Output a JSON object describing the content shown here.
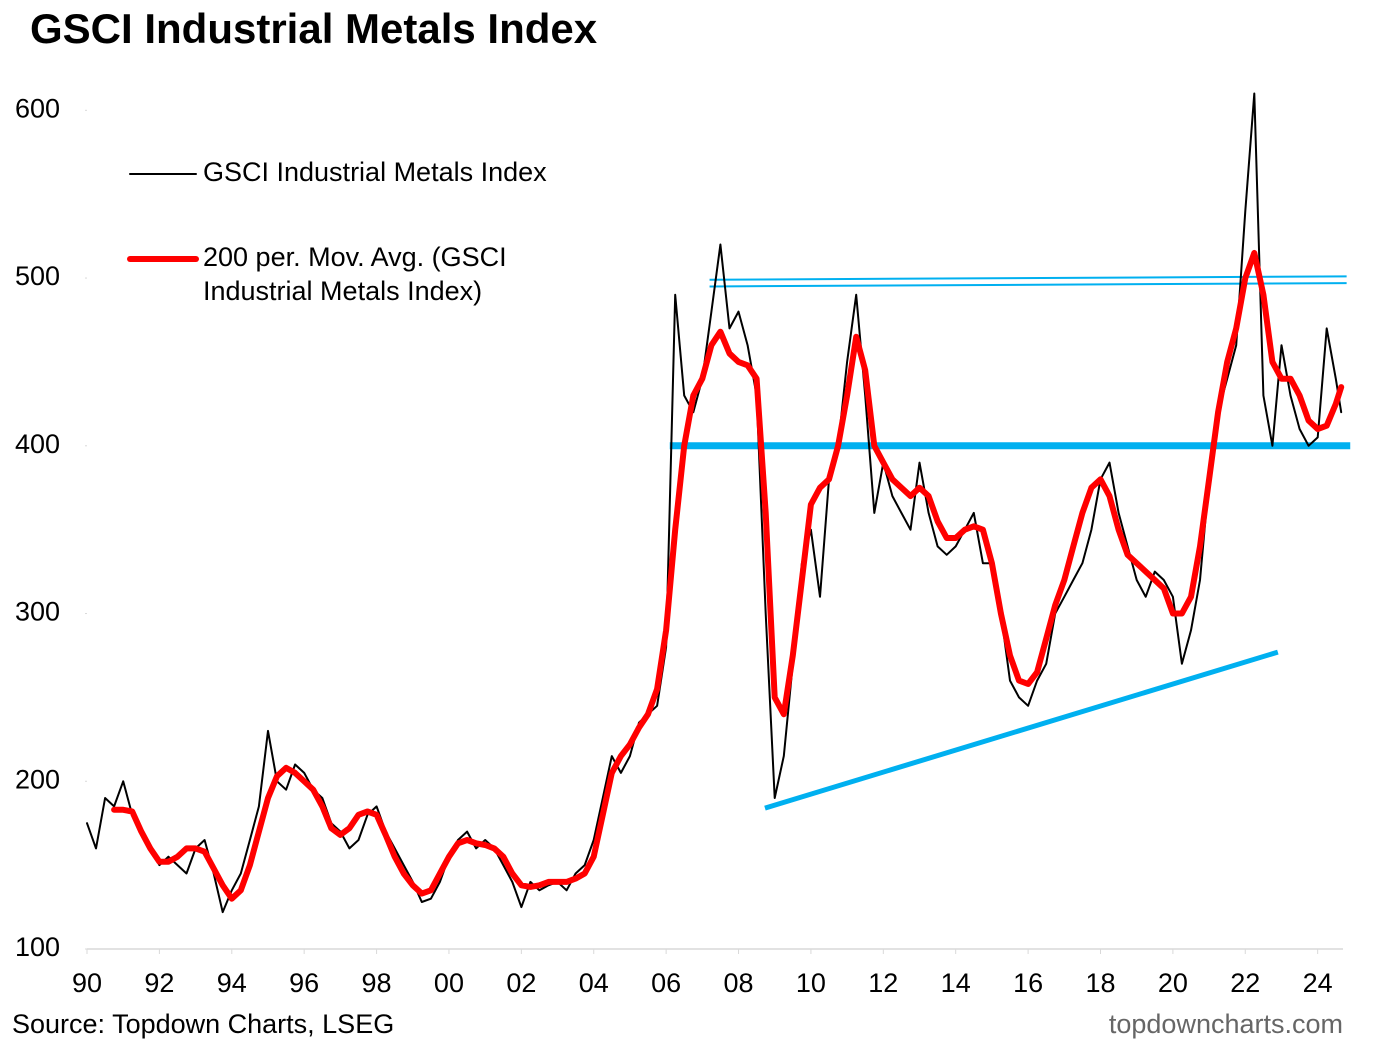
{
  "chart_data": {
    "type": "line",
    "title": "GSCI Industrial Metals Index",
    "source": "Source: Topdown Charts, LSEG",
    "credit": "topdowncharts.com",
    "x": [
      1990,
      1990.25,
      1990.5,
      1990.75,
      1991,
      1991.25,
      1991.5,
      1991.75,
      1992,
      1992.25,
      1992.5,
      1992.75,
      1993,
      1993.25,
      1993.5,
      1993.75,
      1994,
      1994.25,
      1994.5,
      1994.75,
      1995,
      1995.25,
      1995.5,
      1995.75,
      1996,
      1996.25,
      1996.5,
      1996.75,
      1997,
      1997.25,
      1997.5,
      1997.75,
      1998,
      1998.25,
      1998.5,
      1998.75,
      1999,
      1999.25,
      1999.5,
      1999.75,
      2000,
      2000.25,
      2000.5,
      2000.75,
      2001,
      2001.25,
      2001.5,
      2001.75,
      2002,
      2002.25,
      2002.5,
      2002.75,
      2003,
      2003.25,
      2003.5,
      2003.75,
      2004,
      2004.25,
      2004.5,
      2004.75,
      2005,
      2005.25,
      2005.5,
      2005.75,
      2006,
      2006.25,
      2006.5,
      2006.75,
      2007,
      2007.25,
      2007.5,
      2007.75,
      2008,
      2008.25,
      2008.5,
      2008.75,
      2009,
      2009.25,
      2009.5,
      2009.75,
      2010,
      2010.25,
      2010.5,
      2010.75,
      2011,
      2011.25,
      2011.5,
      2011.75,
      2012,
      2012.25,
      2012.5,
      2012.75,
      2013,
      2013.25,
      2013.5,
      2013.75,
      2014,
      2014.25,
      2014.5,
      2014.75,
      2015,
      2015.25,
      2015.5,
      2015.75,
      2016,
      2016.25,
      2016.5,
      2016.75,
      2017,
      2017.25,
      2017.5,
      2017.75,
      2018,
      2018.25,
      2018.5,
      2018.75,
      2019,
      2019.25,
      2019.5,
      2019.75,
      2020,
      2020.25,
      2020.5,
      2020.75,
      2021,
      2021.25,
      2021.5,
      2021.75,
      2022,
      2022.25,
      2022.5,
      2022.75,
      2023,
      2023.25,
      2023.5,
      2023.75,
      2024,
      2024.25,
      2024.5,
      2024.65
    ],
    "series": [
      {
        "name": "GSCI Industrial Metals Index",
        "color": "#000000",
        "values": [
          175,
          160,
          190,
          185,
          200,
          180,
          170,
          160,
          150,
          155,
          150,
          145,
          160,
          165,
          145,
          122,
          135,
          145,
          165,
          185,
          230,
          200,
          195,
          210,
          205,
          195,
          190,
          175,
          170,
          160,
          165,
          180,
          185,
          170,
          160,
          150,
          140,
          128,
          130,
          140,
          155,
          165,
          170,
          160,
          165,
          160,
          150,
          140,
          125,
          140,
          135,
          138,
          140,
          135,
          145,
          150,
          165,
          190,
          215,
          205,
          215,
          235,
          240,
          245,
          280,
          490,
          430,
          420,
          440,
          480,
          520,
          470,
          480,
          460,
          430,
          300,
          190,
          215,
          270,
          330,
          350,
          310,
          380,
          400,
          450,
          490,
          430,
          360,
          390,
          370,
          360,
          350,
          390,
          360,
          340,
          335,
          340,
          350,
          360,
          330,
          330,
          300,
          260,
          250,
          245,
          260,
          270,
          300,
          310,
          320,
          330,
          350,
          380,
          390,
          360,
          340,
          320,
          310,
          325,
          320,
          310,
          270,
          290,
          320,
          380,
          420,
          440,
          460,
          540,
          610,
          430,
          400,
          460,
          430,
          410,
          400,
          405,
          470,
          440,
          420
        ]
      },
      {
        "name": "200 per. Mov. Avg. (GSCI Industrial Metals Index)",
        "color": "#ff0000",
        "values": [
          null,
          null,
          null,
          183,
          183,
          182,
          170,
          160,
          152,
          152,
          155,
          160,
          160,
          158,
          148,
          138,
          130,
          135,
          150,
          170,
          190,
          203,
          208,
          205,
          200,
          195,
          185,
          172,
          168,
          172,
          180,
          182,
          180,
          168,
          155,
          145,
          138,
          133,
          135,
          145,
          155,
          163,
          165,
          163,
          162,
          160,
          155,
          145,
          138,
          137,
          138,
          140,
          140,
          140,
          142,
          145,
          155,
          180,
          205,
          215,
          222,
          232,
          240,
          255,
          290,
          350,
          400,
          430,
          440,
          460,
          468,
          455,
          450,
          448,
          440,
          360,
          250,
          240,
          275,
          320,
          365,
          375,
          380,
          400,
          430,
          465,
          445,
          400,
          390,
          380,
          375,
          370,
          375,
          370,
          355,
          345,
          345,
          350,
          352,
          350,
          330,
          300,
          275,
          260,
          258,
          265,
          285,
          305,
          320,
          340,
          360,
          375,
          380,
          370,
          350,
          335,
          330,
          325,
          320,
          315,
          300,
          300,
          310,
          340,
          380,
          420,
          450,
          470,
          500,
          515,
          490,
          450,
          440,
          440,
          430,
          415,
          410,
          412,
          425,
          435
        ]
      }
    ],
    "trend_lines": [
      {
        "color": "#00b0f0",
        "x": [
          2006.1,
          2024.9
        ],
        "y": [
          400,
          400
        ]
      },
      {
        "color": "#00b0f0",
        "x": [
          2007.2,
          2024.8
        ],
        "y": [
          499,
          501
        ]
      },
      {
        "color": "#00b0f0",
        "x": [
          2007.2,
          2024.8
        ],
        "y": [
          495,
          497
        ]
      },
      {
        "color": "#00b0f0",
        "x": [
          2008.73,
          2022.9
        ],
        "y": [
          184,
          277
        ]
      }
    ],
    "xlim": [
      1990,
      2024.7
    ],
    "ylim": [
      100,
      630
    ],
    "xticks": [
      {
        "value": 1990,
        "label": "90"
      },
      {
        "value": 1992,
        "label": "92"
      },
      {
        "value": 1994,
        "label": "94"
      },
      {
        "value": 1996,
        "label": "96"
      },
      {
        "value": 1998,
        "label": "98"
      },
      {
        "value": 2000,
        "label": "00"
      },
      {
        "value": 2002,
        "label": "02"
      },
      {
        "value": 2004,
        "label": "04"
      },
      {
        "value": 2006,
        "label": "06"
      },
      {
        "value": 2008,
        "label": "08"
      },
      {
        "value": 2010,
        "label": "10"
      },
      {
        "value": 2012,
        "label": "12"
      },
      {
        "value": 2014,
        "label": "14"
      },
      {
        "value": 2016,
        "label": "16"
      },
      {
        "value": 2018,
        "label": "18"
      },
      {
        "value": 2020,
        "label": "20"
      },
      {
        "value": 2022,
        "label": "22"
      },
      {
        "value": 2024,
        "label": "24"
      }
    ],
    "yticks": [
      100,
      200,
      300,
      400,
      500,
      600
    ],
    "grid": false
  }
}
